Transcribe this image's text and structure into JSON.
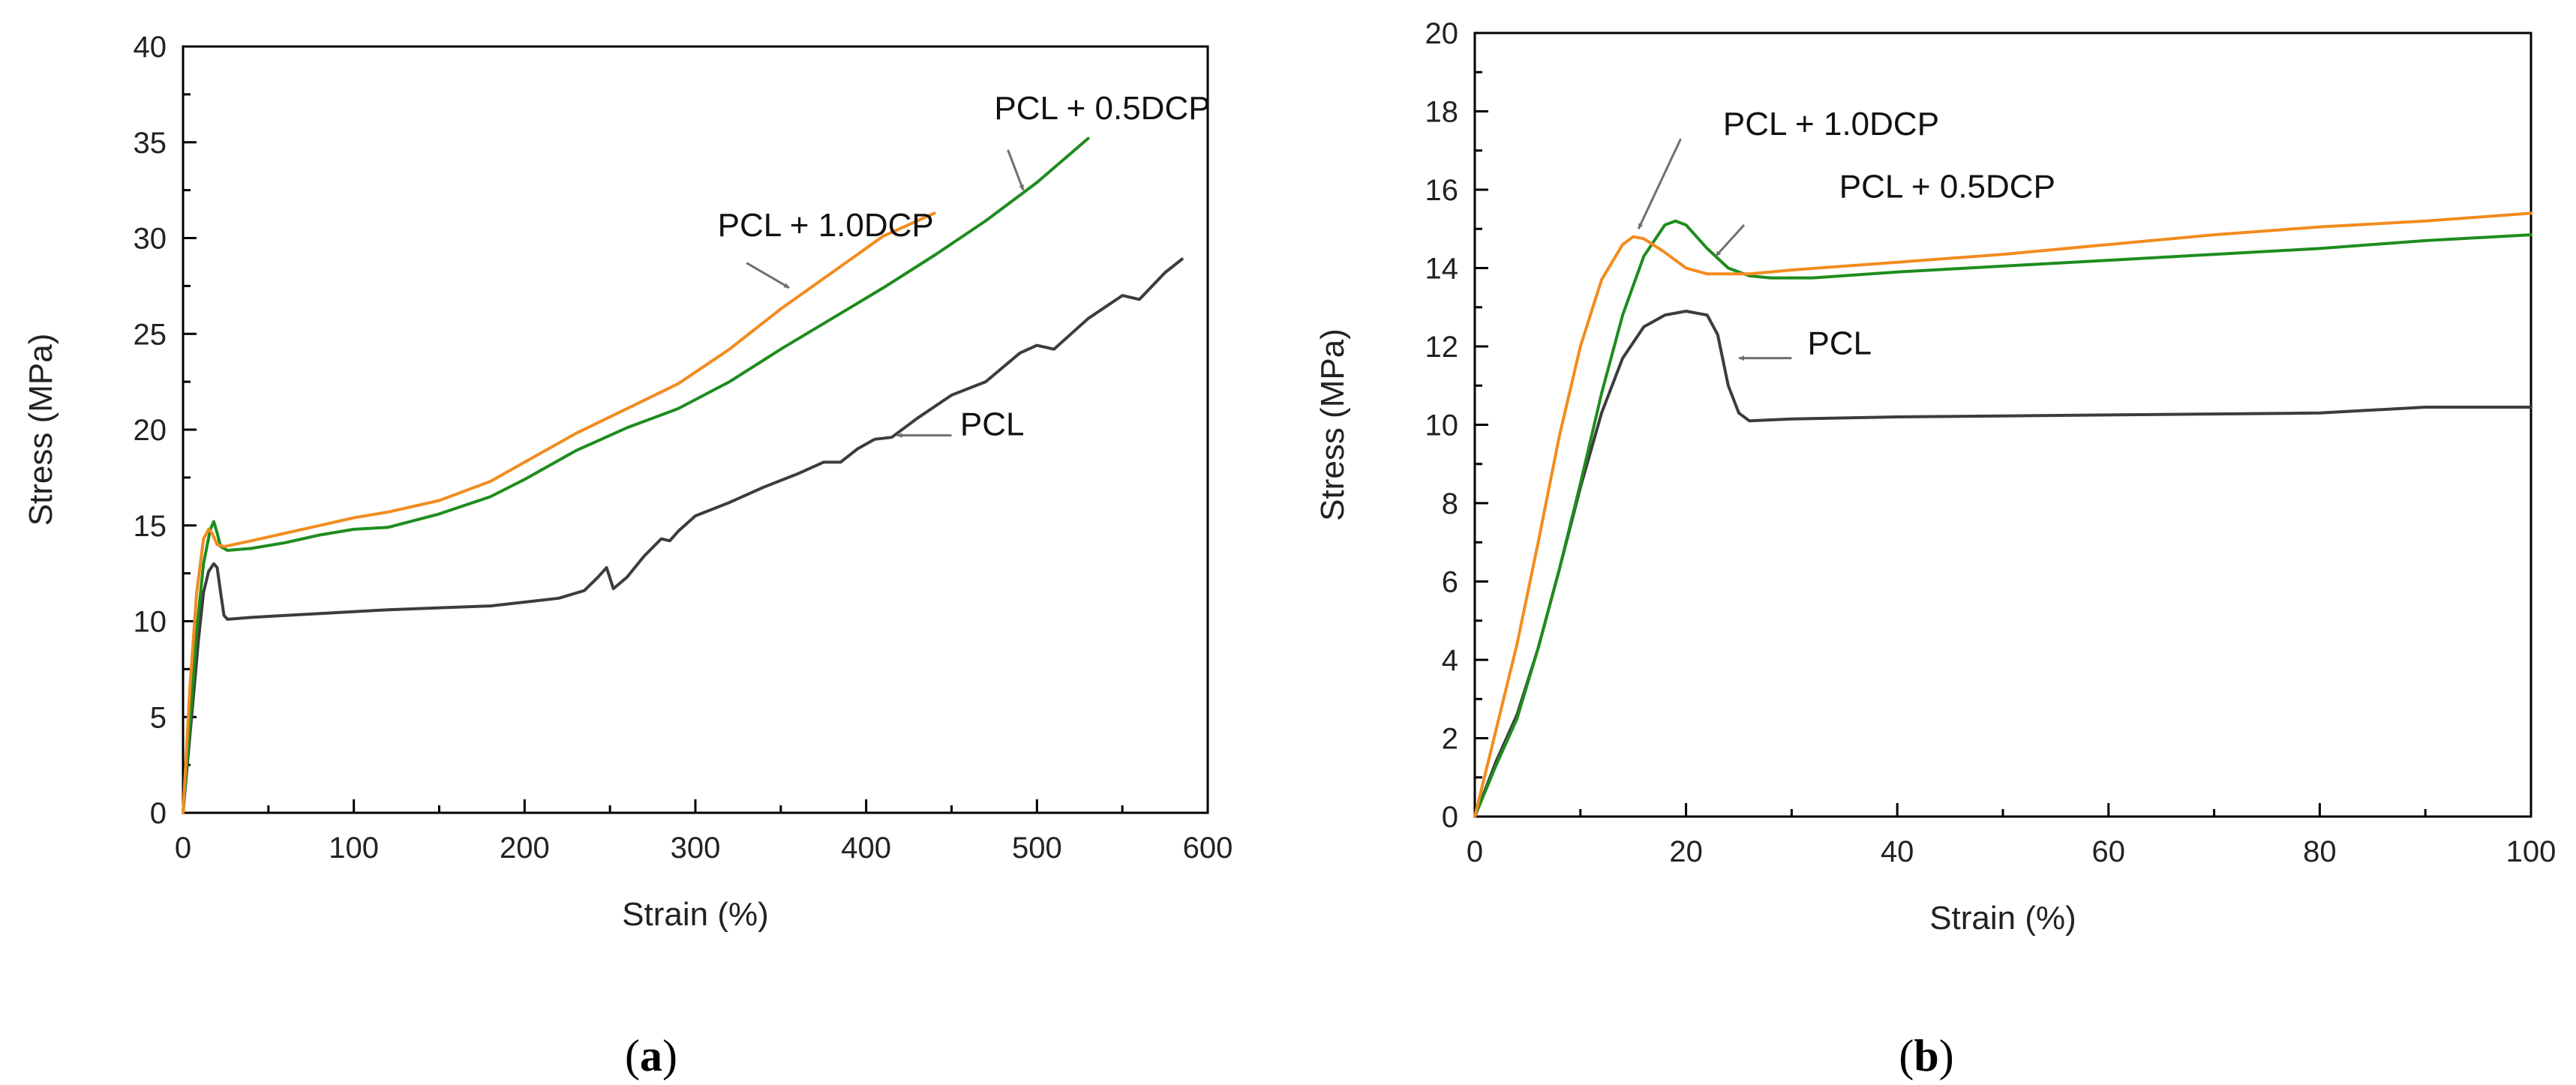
{
  "chart_data": [
    {
      "type": "line",
      "panel_label": "(a)",
      "panel_letter": "a",
      "xlabel": "Strain (%)",
      "ylabel": "Stress (MPa)",
      "xlim": [
        0,
        600
      ],
      "ylim": [
        0,
        40
      ],
      "xticks": [
        0,
        100,
        200,
        300,
        400,
        500,
        600
      ],
      "yticks": [
        0,
        5,
        10,
        15,
        20,
        25,
        30,
        35,
        40
      ],
      "grid": false,
      "series": [
        {
          "name": "PCL",
          "label": "PCL",
          "color": "#3c3c3c",
          "x": [
            0,
            3,
            6,
            9,
            12,
            15,
            18,
            20,
            22,
            24,
            26,
            40,
            60,
            80,
            100,
            120,
            150,
            180,
            200,
            220,
            235,
            243,
            248,
            252,
            260,
            270,
            280,
            285,
            290,
            300,
            320,
            340,
            360,
            375,
            385,
            395,
            405,
            415,
            430,
            450,
            470,
            490,
            500,
            510,
            530,
            550,
            560,
            575,
            585
          ],
          "y": [
            0,
            3,
            6,
            9,
            11.5,
            12.6,
            13.0,
            12.8,
            11.5,
            10.3,
            10.1,
            10.2,
            10.3,
            10.4,
            10.5,
            10.6,
            10.7,
            10.8,
            11.0,
            11.2,
            11.6,
            12.3,
            12.8,
            11.7,
            12.3,
            13.4,
            14.3,
            14.2,
            14.7,
            15.5,
            16.2,
            17.0,
            17.7,
            18.3,
            18.3,
            19.0,
            19.5,
            19.6,
            20.6,
            21.8,
            22.5,
            24.0,
            24.4,
            24.2,
            25.8,
            27.0,
            26.8,
            28.2,
            28.9
          ]
        },
        {
          "name": "PCL + 0.5DCP",
          "label": "PCL + 0.5DCP",
          "color": "#1e8c1e",
          "x": [
            0,
            4,
            8,
            12,
            16,
            18,
            20,
            22,
            26,
            40,
            60,
            80,
            100,
            120,
            150,
            180,
            200,
            230,
            260,
            290,
            320,
            350,
            380,
            410,
            440,
            470,
            500,
            530
          ],
          "y": [
            0,
            4.5,
            9.5,
            13.0,
            14.8,
            15.2,
            14.6,
            13.9,
            13.7,
            13.8,
            14.1,
            14.5,
            14.8,
            14.9,
            15.6,
            16.5,
            17.4,
            18.9,
            20.1,
            21.1,
            22.5,
            24.2,
            25.8,
            27.4,
            29.1,
            30.9,
            32.9,
            35.2
          ]
        },
        {
          "name": "PCL + 1.0DCP",
          "label": "PCL + 1.0DCP",
          "color": "#f28c1e",
          "x": [
            0,
            4,
            8,
            12,
            15,
            17,
            20,
            24,
            40,
            60,
            80,
            100,
            120,
            150,
            180,
            200,
            230,
            260,
            290,
            320,
            350,
            380,
            410,
            440
          ],
          "y": [
            0,
            6.5,
            11.5,
            14.3,
            14.8,
            14.6,
            14.0,
            13.9,
            14.2,
            14.6,
            15.0,
            15.4,
            15.7,
            16.3,
            17.3,
            18.3,
            19.8,
            21.1,
            22.4,
            24.2,
            26.3,
            28.2,
            30.1,
            31.3
          ]
        }
      ],
      "annotations": [
        {
          "text": "PCL + 0.5DCP",
          "series": "PCL + 0.5DCP",
          "label_at": [
            475,
            36.2
          ],
          "arrow_from": [
            483,
            34.6
          ],
          "arrow_to": [
            492,
            32.5
          ]
        },
        {
          "text": "PCL + 1.0DCP",
          "series": "PCL + 1.0DCP",
          "label_at": [
            313,
            30.1
          ],
          "arrow_from": [
            330,
            28.7
          ],
          "arrow_to": [
            355,
            27.4
          ]
        },
        {
          "text": "PCL",
          "series": "PCL",
          "label_at": [
            455,
            19.7
          ],
          "arrow_from": [
            450,
            19.7
          ],
          "arrow_to": [
            418,
            19.7
          ]
        }
      ]
    },
    {
      "type": "line",
      "panel_label": "(b)",
      "panel_letter": "b",
      "xlabel": "Strain (%)",
      "ylabel": "Stress (MPa)",
      "xlim": [
        0,
        100
      ],
      "ylim": [
        0,
        20
      ],
      "xticks": [
        0,
        20,
        40,
        60,
        80,
        100
      ],
      "yticks": [
        0,
        2,
        4,
        6,
        8,
        10,
        12,
        14,
        16,
        18,
        20
      ],
      "grid": false,
      "series": [
        {
          "name": "PCL",
          "label": "PCL",
          "color": "#3c3c3c",
          "x": [
            0,
            2,
            4,
            6,
            8,
            10,
            12,
            14,
            16,
            18,
            20,
            22,
            23,
            24,
            25,
            26,
            30,
            40,
            60,
            80,
            90,
            100
          ],
          "y": [
            0,
            1.4,
            2.6,
            4.3,
            6.3,
            8.4,
            10.3,
            11.7,
            12.5,
            12.8,
            12.9,
            12.8,
            12.3,
            11.0,
            10.3,
            10.1,
            10.15,
            10.2,
            10.25,
            10.3,
            10.45,
            10.45
          ]
        },
        {
          "name": "PCL + 0.5DCP",
          "label": "PCL + 0.5DCP",
          "color": "#1e8c1e",
          "x": [
            0,
            2,
            4,
            6,
            8,
            10,
            12,
            14,
            16,
            18,
            19,
            20,
            22,
            24,
            26,
            28,
            32,
            40,
            50,
            60,
            70,
            80,
            90,
            100
          ],
          "y": [
            0,
            1.3,
            2.5,
            4.3,
            6.3,
            8.5,
            10.8,
            12.8,
            14.3,
            15.1,
            15.2,
            15.1,
            14.5,
            14.0,
            13.8,
            13.75,
            13.75,
            13.9,
            14.05,
            14.2,
            14.35,
            14.5,
            14.7,
            14.85
          ]
        },
        {
          "name": "PCL + 1.0DCP",
          "label": "PCL + 1.0DCP",
          "color": "#f28c1e",
          "x": [
            0,
            2,
            4,
            6,
            8,
            10,
            12,
            14,
            15,
            16,
            18,
            20,
            22,
            24,
            26,
            30,
            40,
            50,
            60,
            70,
            80,
            90,
            100
          ],
          "y": [
            0,
            2.2,
            4.4,
            7.0,
            9.7,
            12.0,
            13.7,
            14.6,
            14.8,
            14.75,
            14.4,
            14.0,
            13.85,
            13.85,
            13.85,
            13.95,
            14.15,
            14.35,
            14.6,
            14.85,
            15.05,
            15.2,
            15.4
          ]
        }
      ],
      "annotations": [
        {
          "text": "PCL + 1.0DCP",
          "series": "PCL + 1.0DCP",
          "label_at": [
            23.5,
            17.4
          ],
          "arrow_from": [
            19.5,
            17.3
          ],
          "arrow_to": [
            15.5,
            15.0
          ]
        },
        {
          "text": "PCL + 0.5DCP",
          "series": "PCL + 0.5DCP",
          "label_at": [
            34.5,
            15.8
          ],
          "arrow_from": [
            25.5,
            15.1
          ],
          "arrow_to": [
            22.8,
            14.3
          ]
        },
        {
          "text": "PCL",
          "series": "PCL",
          "label_at": [
            31.5,
            11.8
          ],
          "arrow_from": [
            30,
            11.7
          ],
          "arrow_to": [
            25,
            11.7
          ]
        }
      ]
    }
  ]
}
